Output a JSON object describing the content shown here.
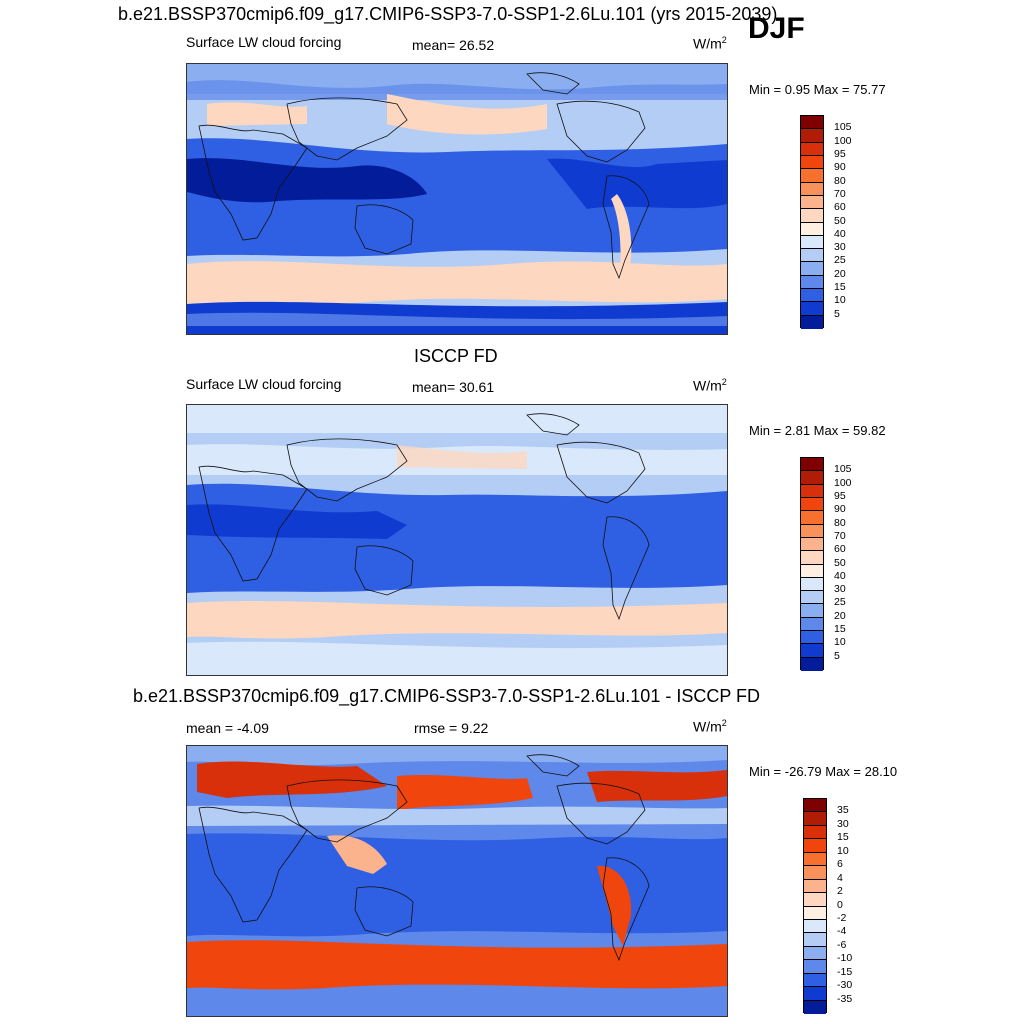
{
  "header": {
    "case_title": "b.e21.BSSP370cmip6.f09_g17.CMIP6-SSP3-7.0-SSP1-2.6Lu.101 (yrs 2015-2039)",
    "season": "DJF"
  },
  "panels": [
    {
      "id": "model",
      "variable": "Surface LW cloud forcing",
      "stat_text": "mean=  26.52",
      "units_base": "W/m",
      "units_sup": "2",
      "minmax": "Min =   0.95 Max =  75.77",
      "colorbar": {
        "ticks": [
          "105",
          "100",
          "95",
          "90",
          "80",
          "70",
          "60",
          "50",
          "40",
          "30",
          "25",
          "20",
          "15",
          "10",
          "5"
        ],
        "colors": [
          "#7f0000",
          "#b01c05",
          "#d7300a",
          "#f0460d",
          "#f7702e",
          "#f9925a",
          "#fbb38d",
          "#fdd7c0",
          "#fdf0e3",
          "#d9e8fb",
          "#b3cdf5",
          "#8aaef0",
          "#5e88ea",
          "#2f5fe3",
          "#0f3bd1",
          "#021c9a"
        ]
      }
    },
    {
      "id": "obs",
      "title": "ISCCP FD",
      "variable": "Surface LW cloud forcing",
      "stat_text": "mean=  30.61",
      "units_base": "W/m",
      "units_sup": "2",
      "minmax": "Min =   2.81 Max =  59.82",
      "colorbar": {
        "ticks": [
          "105",
          "100",
          "95",
          "90",
          "80",
          "70",
          "60",
          "50",
          "40",
          "30",
          "25",
          "20",
          "15",
          "10",
          "5"
        ],
        "colors": [
          "#7f0000",
          "#b01c05",
          "#d7300a",
          "#f0460d",
          "#f7702e",
          "#f9925a",
          "#fbb38d",
          "#fdd7c0",
          "#fdf0e3",
          "#d9e8fb",
          "#b3cdf5",
          "#8aaef0",
          "#5e88ea",
          "#2f5fe3",
          "#0f3bd1",
          "#021c9a"
        ]
      }
    },
    {
      "id": "diff",
      "title": "b.e21.BSSP370cmip6.f09_g17.CMIP6-SSP3-7.0-SSP1-2.6Lu.101 - ISCCP FD",
      "stat_text": "mean =  -4.09",
      "rmse_text": "rmse =   9.22",
      "units_base": "W/m",
      "units_sup": "2",
      "minmax": "Min = -26.79 Max =  28.10",
      "colorbar": {
        "ticks": [
          "35",
          "30",
          "15",
          "10",
          "6",
          "4",
          "2",
          "0",
          "-2",
          "-4",
          "-6",
          "-10",
          "-15",
          "-30",
          "-35"
        ],
        "colors": [
          "#7f0000",
          "#b01c05",
          "#d7300a",
          "#f0460d",
          "#f7702e",
          "#f9925a",
          "#fbb38d",
          "#fdd7c0",
          "#fdf0e3",
          "#d9e8fb",
          "#b3cdf5",
          "#8aaef0",
          "#5e88ea",
          "#2f5fe3",
          "#0f3bd1",
          "#021c9a"
        ]
      }
    }
  ]
}
